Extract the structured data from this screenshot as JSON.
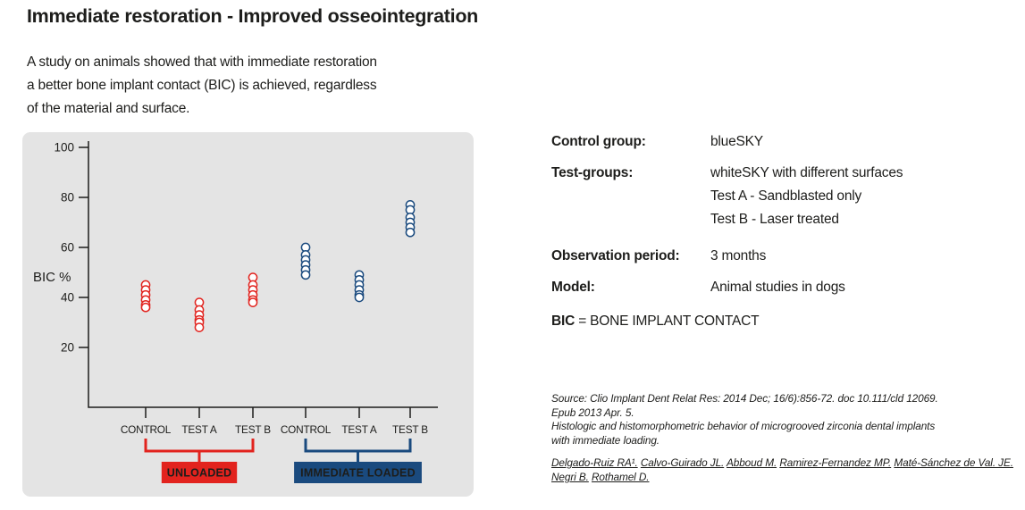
{
  "page": {
    "title": "Immediate restoration - Improved osseointegration",
    "subtitle_lines": [
      "A study on animals showed that with immediate restoration",
      "a better bone implant contact (BIC) is achieved, regardless",
      "of the material and surface."
    ]
  },
  "info_panel": {
    "rows": [
      {
        "label": "Control group:",
        "values": [
          "blueSKY"
        ]
      },
      {
        "label": "Test-groups:",
        "values": [
          "whiteSKY with different surfaces",
          "Test A - Sandblasted only",
          "Test B - Laser treated"
        ]
      },
      {
        "label": "Observation period:",
        "values": [
          "3 months"
        ]
      },
      {
        "label": "Model:",
        "values": [
          "Animal studies in dogs"
        ]
      }
    ],
    "abbreviation": {
      "term": "BIC",
      "definition": "= BONE IMPLANT CONTACT"
    }
  },
  "source": {
    "citation_lines": [
      "Source: Clio Implant Dent Relat Res: 2014 Dec; 16/6):856-72. doc 10.111/cld 12069.",
      "Epub 2013 Apr. 5.",
      "Histologic and histomorphometric behavior of microgrooved zirconia dental implants",
      "with immediate loading."
    ],
    "authors": [
      "Delgado-Ruiz RA¹.",
      "Calvo-Guirado JL.",
      "Abboud M.",
      "Ramirez-Fernandez MP.",
      "Maté-Sánchez de Val. JE.",
      "Negri B.",
      "Rothamel D."
    ]
  },
  "chart_data": {
    "type": "scatter",
    "title": "",
    "ylabel": "BIC %",
    "xlabel": "",
    "yticks": [
      100,
      80,
      60,
      40,
      20
    ],
    "ylim": [
      0,
      105
    ],
    "grid": false,
    "legend_position": "below-axis-brackets",
    "categories": [
      "CONTROL",
      "TEST A",
      "TEST B",
      "CONTROL",
      "TEST A",
      "TEST B"
    ],
    "groups": [
      {
        "category": "CONTROL",
        "loading": "UNLOADED",
        "color": "#e2231e",
        "values": [
          45,
          43,
          41,
          39,
          37,
          36
        ]
      },
      {
        "category": "TEST A",
        "loading": "UNLOADED",
        "color": "#e2231e",
        "values": [
          38,
          35,
          33,
          31,
          30,
          28
        ]
      },
      {
        "category": "TEST B",
        "loading": "UNLOADED",
        "color": "#e2231e",
        "values": [
          48,
          45,
          43,
          41,
          39,
          38
        ]
      },
      {
        "category": "CONTROL",
        "loading": "IMMEDIATE LOADED",
        "color": "#1a4a7e",
        "values": [
          60,
          57,
          55,
          53,
          51,
          49
        ]
      },
      {
        "category": "TEST A",
        "loading": "IMMEDIATE LOADED",
        "color": "#1a4a7e",
        "values": [
          49,
          47,
          45,
          43,
          41,
          40
        ]
      },
      {
        "category": "TEST B",
        "loading": "IMMEDIATE LOADED",
        "color": "#1a4a7e",
        "values": [
          77,
          75,
          72,
          70,
          68,
          66
        ]
      }
    ],
    "group_brackets": [
      {
        "label": "UNLOADED",
        "color": "#e2231e",
        "from_index": 0,
        "to_index": 2
      },
      {
        "label": "IMMEDIATE LOADED",
        "color": "#1a4a7e",
        "from_index": 3,
        "to_index": 5
      }
    ]
  },
  "colors": {
    "accent_red": "#e2231e",
    "accent_navy": "#1a4a7e",
    "panel_bg": "#e4e4e4",
    "ink": "#1d1d1b"
  }
}
